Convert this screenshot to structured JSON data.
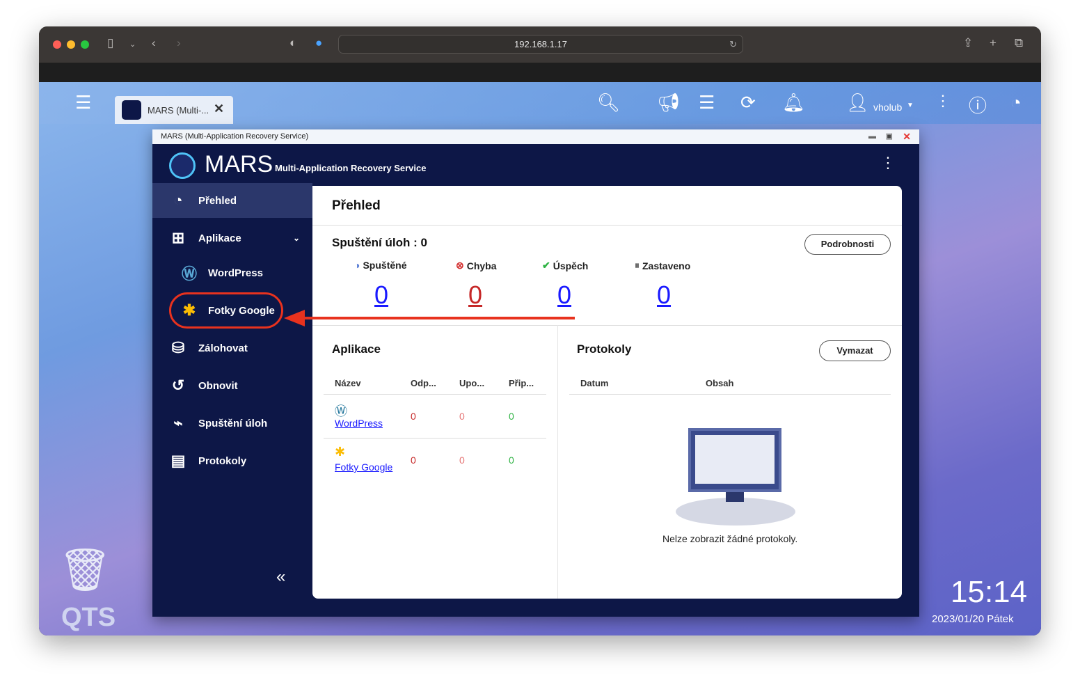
{
  "browser": {
    "url": "192.168.1.17"
  },
  "qts": {
    "tab_label": "MARS (Multi-...",
    "user": "vholub",
    "logo": "QTS",
    "clock": "15:14",
    "date": "2023/01/20 Pátek"
  },
  "app": {
    "window_title": "MARS (Multi-Application Recovery Service)",
    "brand": "MARS",
    "brand_subtitle": "Multi-Application Recovery Service",
    "sidebar": [
      {
        "label": "Přehled",
        "icon": "gauge-icon",
        "active": true
      },
      {
        "label": "Aplikace",
        "icon": "grid-icon"
      },
      {
        "label": "WordPress",
        "icon": "wordpress-icon"
      },
      {
        "label": "Fotky Google",
        "icon": "google-photos-icon"
      },
      {
        "label": "Zálohovat",
        "icon": "backup-icon"
      },
      {
        "label": "Obnovit",
        "icon": "restore-icon"
      },
      {
        "label": "Spuštění úloh",
        "icon": "activity-icon"
      },
      {
        "label": "Protokoly",
        "icon": "logs-icon"
      }
    ],
    "overview": {
      "title": "Přehled",
      "jobs_title": "Spuštění úloh : 0",
      "details_button": "Podrobnosti",
      "stats": [
        {
          "label": "Spuštěné",
          "value": "0",
          "color": "#1a1aff"
        },
        {
          "label": "Chyba",
          "value": "0",
          "color": "#c62828"
        },
        {
          "label": "Úspěch",
          "value": "0",
          "color": "#1a1aff"
        },
        {
          "label": "Zastaveno",
          "value": "0",
          "color": "#1a1aff"
        }
      ],
      "apps": {
        "title": "Aplikace",
        "columns": [
          "Název",
          "Odp...",
          "Upo...",
          "Přip..."
        ],
        "rows": [
          {
            "name": "WordPress",
            "v": [
              "0",
              "0",
              "0"
            ]
          },
          {
            "name": "Fotky Google",
            "v": [
              "0",
              "0",
              "0"
            ]
          }
        ]
      },
      "logs": {
        "title": "Protokoly",
        "clear_button": "Vymazat",
        "columns": [
          "Datum",
          "Obsah"
        ],
        "empty": "Nelze zobrazit žádné protokoly."
      }
    }
  },
  "annotation": {
    "color": "#e8321e"
  }
}
